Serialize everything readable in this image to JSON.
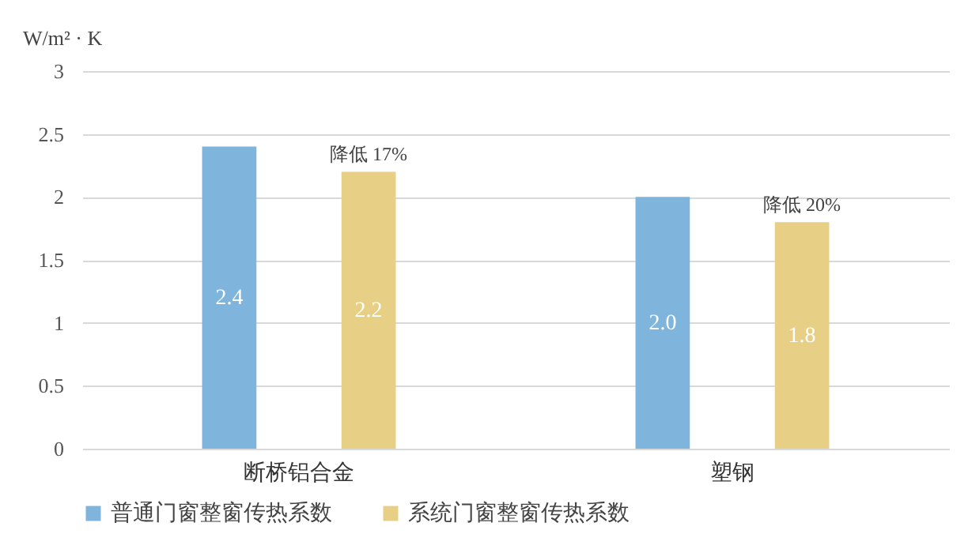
{
  "chart_data": {
    "type": "bar",
    "ylabel": "W/m² · K",
    "categories": [
      "断桥铝合金",
      "塑钢"
    ],
    "series": [
      {
        "name": "普通门窗整窗传热系数",
        "color": "#7fb5dc",
        "values": [
          2.4,
          2.0
        ],
        "value_labels": [
          "2.4",
          "2.0"
        ]
      },
      {
        "name": "系统门窗整窗传热系数",
        "color": "#e8cf86",
        "values": [
          2.2,
          1.8
        ],
        "value_labels": [
          "2.2",
          "1.8"
        ]
      }
    ],
    "annotations": [
      "降低 17%",
      "降低 20%"
    ],
    "ylim": [
      0,
      3
    ],
    "yticks": [
      0,
      0.5,
      1,
      1.5,
      2,
      2.5,
      3
    ],
    "grid": "y",
    "legend": "bottom"
  }
}
